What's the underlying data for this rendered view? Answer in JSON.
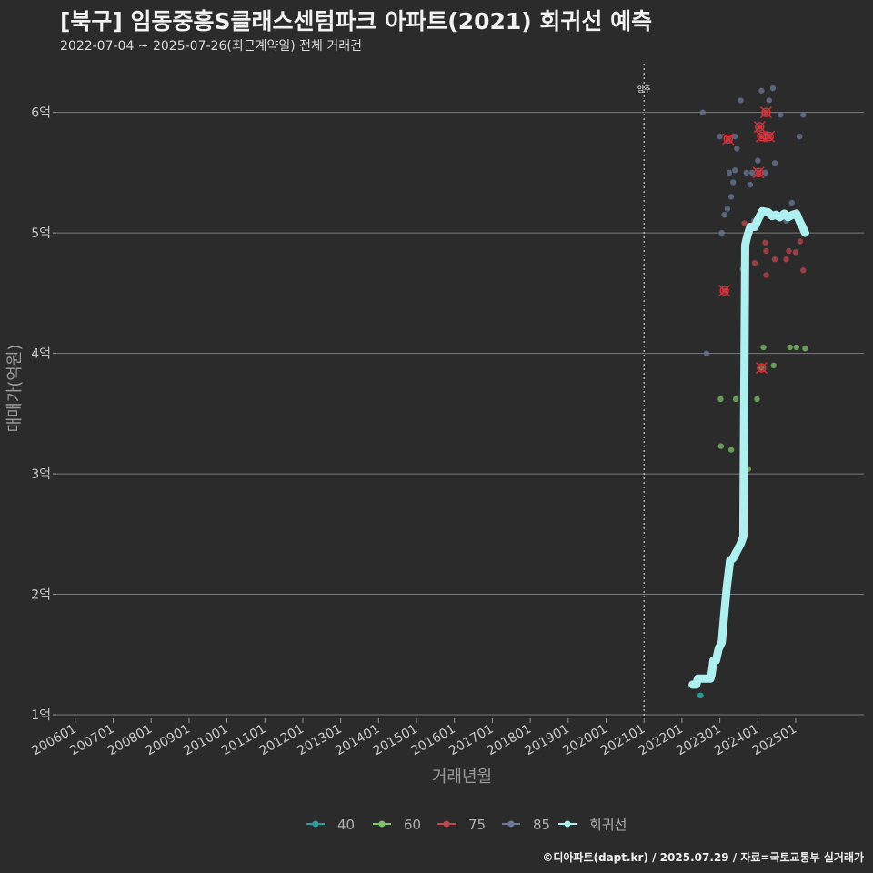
{
  "chart_data": {
    "type": "scatter",
    "title": "[북구] 임동중흥S클래스센텀파크 아파트(2021) 회귀선 예측",
    "subtitle": "2022-07-04 ~ 2025-07-26(최근계약일) 전체 거래건",
    "caption": "©디아파트(dapt.kr) / 2025.07.29 / 자료=국토교통부 실거래가",
    "xlabel": "거래년월",
    "ylabel": "매매가(억원)",
    "x_unit": "decimal year",
    "xlim": [
      2005.5,
      2026.8
    ],
    "ylim": [
      0.97,
      6.42
    ],
    "x_ticks": [
      {
        "value": 2006,
        "label": "200601"
      },
      {
        "value": 2007,
        "label": "200701"
      },
      {
        "value": 2008,
        "label": "200801"
      },
      {
        "value": 2009,
        "label": "200901"
      },
      {
        "value": 2010,
        "label": "201001"
      },
      {
        "value": 2011,
        "label": "201101"
      },
      {
        "value": 2012,
        "label": "201201"
      },
      {
        "value": 2013,
        "label": "201301"
      },
      {
        "value": 2014,
        "label": "201401"
      },
      {
        "value": 2015,
        "label": "201501"
      },
      {
        "value": 2016,
        "label": "201601"
      },
      {
        "value": 2017,
        "label": "201701"
      },
      {
        "value": 2018,
        "label": "201801"
      },
      {
        "value": 2019,
        "label": "201901"
      },
      {
        "value": 2020,
        "label": "202001"
      },
      {
        "value": 2021,
        "label": "202101"
      },
      {
        "value": 2022,
        "label": "202201"
      },
      {
        "value": 2023,
        "label": "202301"
      },
      {
        "value": 2024,
        "label": "202401"
      },
      {
        "value": 2025,
        "label": "202501"
      }
    ],
    "y_ticks": [
      {
        "value": 1,
        "label": "1억"
      },
      {
        "value": 2,
        "label": "2억"
      },
      {
        "value": 3,
        "label": "3억"
      },
      {
        "value": 4,
        "label": "4억"
      },
      {
        "value": 5,
        "label": "5억"
      },
      {
        "value": 6,
        "label": "6억"
      }
    ],
    "annotation": {
      "x": 2021.0,
      "label": "입주"
    },
    "series": [
      {
        "name": "40",
        "color": "#2f9c9c",
        "points": [
          [
            2022.48,
            1.16
          ],
          [
            2022.5,
            1.16
          ]
        ],
        "highlight": []
      },
      {
        "name": "60",
        "color": "#7ec26a",
        "points": [
          [
            2023.02,
            3.62
          ],
          [
            2023.03,
            3.23
          ],
          [
            2023.3,
            3.2
          ],
          [
            2023.42,
            3.62
          ],
          [
            2023.75,
            3.04
          ],
          [
            2023.98,
            3.62
          ],
          [
            2024.15,
            4.05
          ],
          [
            2024.42,
            3.9
          ],
          [
            2024.85,
            4.05
          ],
          [
            2025.02,
            4.05
          ],
          [
            2025.25,
            4.04
          ],
          [
            2024.1,
            3.88
          ]
        ],
        "highlight": [
          [
            2024.1,
            3.88
          ]
        ]
      },
      {
        "name": "75",
        "color": "#c0474c",
        "points": [
          [
            2023.12,
            4.52
          ],
          [
            2023.65,
            5.08
          ],
          [
            2023.92,
            4.75
          ],
          [
            2024.2,
            4.92
          ],
          [
            2024.22,
            4.85
          ],
          [
            2024.22,
            4.65
          ],
          [
            2024.45,
            4.78
          ],
          [
            2024.75,
            4.78
          ],
          [
            2024.82,
            4.85
          ],
          [
            2025.0,
            4.84
          ],
          [
            2025.12,
            4.93
          ],
          [
            2025.2,
            4.69
          ],
          [
            2024.05,
            5.88
          ],
          [
            2023.22,
            5.78
          ],
          [
            2024.22,
            6.0
          ],
          [
            2024.02,
            5.5
          ],
          [
            2024.3,
            5.8
          ],
          [
            2024.1,
            5.8
          ]
        ],
        "highlight": [
          [
            2023.12,
            4.52
          ],
          [
            2024.05,
            5.88
          ],
          [
            2023.22,
            5.78
          ],
          [
            2024.22,
            6.0
          ],
          [
            2024.02,
            5.5
          ],
          [
            2024.3,
            5.8
          ],
          [
            2024.1,
            5.8
          ]
        ]
      },
      {
        "name": "85",
        "color": "#6b7897",
        "points": [
          [
            2022.55,
            6.0
          ],
          [
            2022.65,
            4.0
          ],
          [
            2023.0,
            5.8
          ],
          [
            2023.12,
            5.15
          ],
          [
            2023.2,
            5.2
          ],
          [
            2023.25,
            5.5
          ],
          [
            2023.3,
            5.3
          ],
          [
            2023.35,
            5.42
          ],
          [
            2023.4,
            5.52
          ],
          [
            2023.45,
            5.7
          ],
          [
            2023.55,
            6.1
          ],
          [
            2023.7,
            5.5
          ],
          [
            2023.8,
            5.4
          ],
          [
            2023.85,
            5.5
          ],
          [
            2024.0,
            5.6
          ],
          [
            2024.1,
            6.18
          ],
          [
            2024.2,
            5.5
          ],
          [
            2024.3,
            6.1
          ],
          [
            2024.4,
            6.2
          ],
          [
            2024.45,
            5.58
          ],
          [
            2024.6,
            5.98
          ],
          [
            2024.9,
            5.25
          ],
          [
            2025.1,
            5.8
          ],
          [
            2025.2,
            5.98
          ],
          [
            2023.6,
            4.7
          ],
          [
            2023.05,
            5.0
          ],
          [
            2023.9,
            5.1
          ],
          [
            2024.5,
            5.15
          ],
          [
            2024.75,
            5.1
          ],
          [
            2023.4,
            5.8
          ]
        ],
        "highlight": []
      },
      {
        "name": "회귀선",
        "color": "#aef0ef",
        "line": [
          [
            2022.28,
            1.25
          ],
          [
            2022.38,
            1.25
          ],
          [
            2022.42,
            1.3
          ],
          [
            2022.55,
            1.3
          ],
          [
            2022.75,
            1.3
          ],
          [
            2022.78,
            1.33
          ],
          [
            2022.83,
            1.45
          ],
          [
            2022.9,
            1.45
          ],
          [
            2022.97,
            1.55
          ],
          [
            2023.05,
            1.6
          ],
          [
            2023.12,
            1.85
          ],
          [
            2023.18,
            2.05
          ],
          [
            2023.27,
            2.28
          ],
          [
            2023.35,
            2.3
          ],
          [
            2023.45,
            2.36
          ],
          [
            2023.55,
            2.42
          ],
          [
            2023.62,
            2.48
          ],
          [
            2023.67,
            4.9
          ],
          [
            2023.72,
            4.97
          ],
          [
            2023.8,
            5.05
          ],
          [
            2023.92,
            5.05
          ],
          [
            2024.02,
            5.12
          ],
          [
            2024.12,
            5.18
          ],
          [
            2024.28,
            5.17
          ],
          [
            2024.38,
            5.14
          ],
          [
            2024.48,
            5.15
          ],
          [
            2024.58,
            5.13
          ],
          [
            2024.7,
            5.16
          ],
          [
            2024.8,
            5.13
          ],
          [
            2024.92,
            5.15
          ],
          [
            2025.02,
            5.16
          ],
          [
            2025.1,
            5.1
          ],
          [
            2025.18,
            5.05
          ],
          [
            2025.25,
            5.0
          ]
        ]
      }
    ],
    "legend_position": "bottom"
  }
}
